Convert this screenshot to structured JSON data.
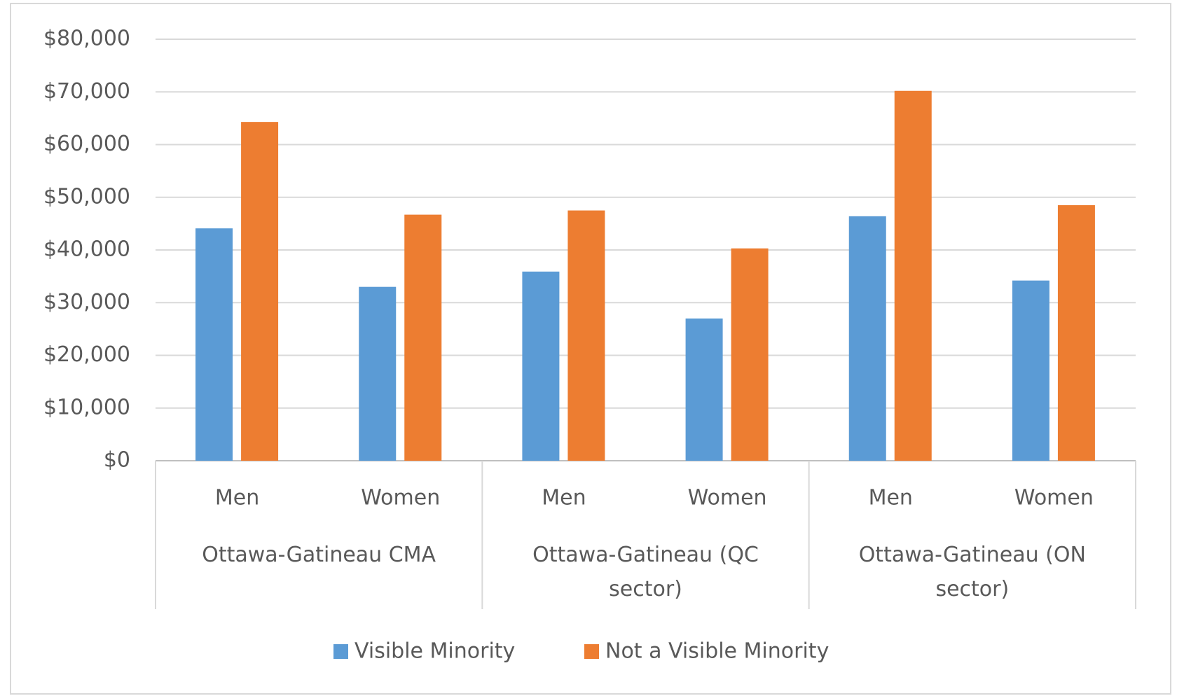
{
  "chart_data": {
    "type": "bar",
    "categories": [
      "Men",
      "Women",
      "Men",
      "Women",
      "Men",
      "Women"
    ],
    "groups": [
      "Ottawa-Gatineau CMA",
      "Ottawa-Gatineau (QC sector)",
      "Ottawa-Gatineau (ON sector)"
    ],
    "series": [
      {
        "name": "Visible Minority",
        "color": "#5b9bd5",
        "values": [
          44100,
          33000,
          35900,
          27000,
          46400,
          34200
        ]
      },
      {
        "name": "Not a Visible Minority",
        "color": "#ed7d31",
        "values": [
          64300,
          46700,
          47500,
          40300,
          70200,
          48500
        ]
      }
    ],
    "ylim": [
      0,
      80000
    ],
    "yticks": [
      {
        "value": 0,
        "label": "$0"
      },
      {
        "value": 10000,
        "label": "$10,000"
      },
      {
        "value": 20000,
        "label": "$20,000"
      },
      {
        "value": 30000,
        "label": "$30,000"
      },
      {
        "value": 40000,
        "label": "$40,000"
      },
      {
        "value": 50000,
        "label": "$50,000"
      },
      {
        "value": 60000,
        "label": "$60,000"
      },
      {
        "value": 70000,
        "label": "$70,000"
      },
      {
        "value": 80000,
        "label": "$80,000"
      }
    ],
    "grid": true,
    "legend": "bottom"
  }
}
